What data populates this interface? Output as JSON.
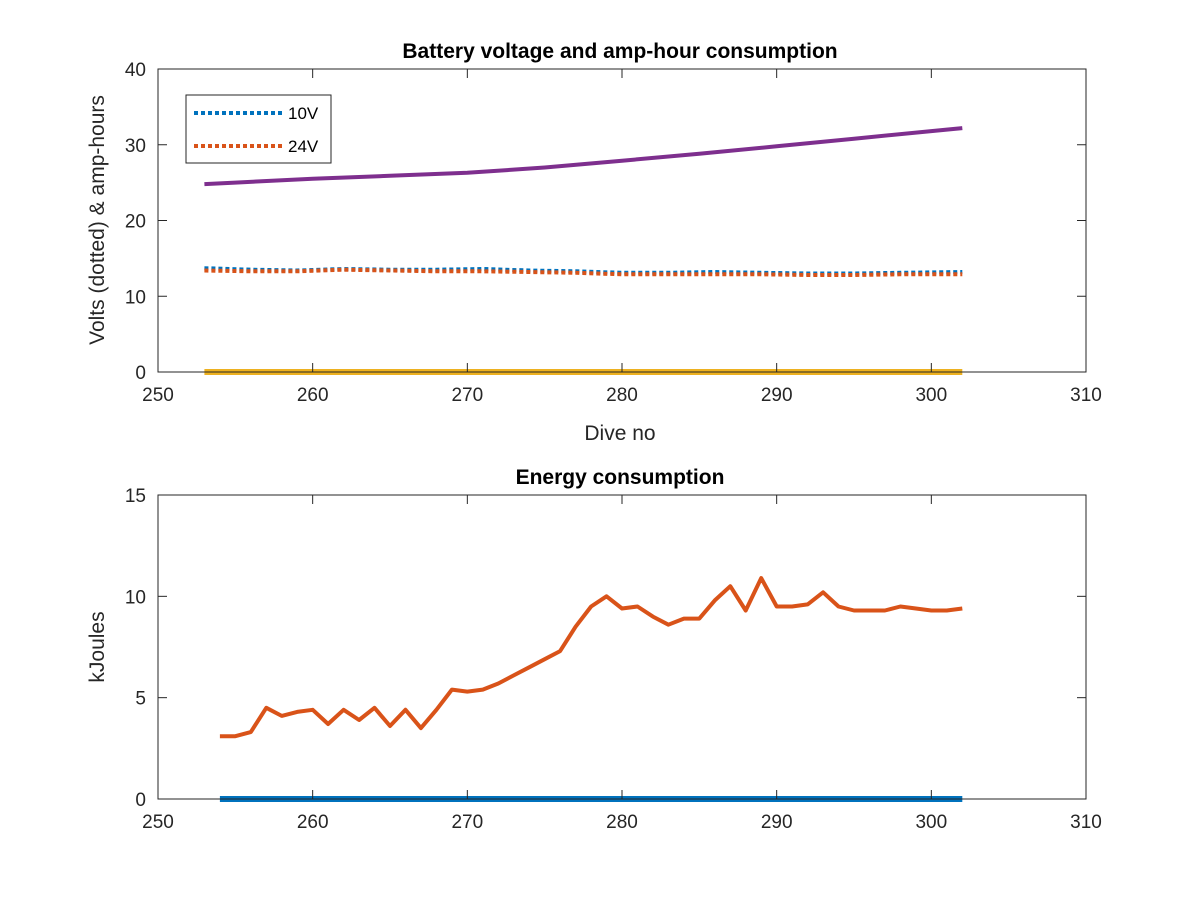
{
  "chart_data": [
    {
      "type": "line",
      "title": "Battery voltage and amp-hour consumption",
      "xlabel": "Dive no",
      "ylabel": "Volts (dotted) & amp-hours",
      "xlim": [
        250,
        310
      ],
      "ylim": [
        0,
        40
      ],
      "xticks": [
        250,
        260,
        270,
        280,
        290,
        300,
        310
      ],
      "yticks": [
        0,
        10,
        20,
        30,
        40
      ],
      "grid": false,
      "legend": "top-left",
      "series": [
        {
          "name": "10V",
          "style": "dotted",
          "color": "#0072BD",
          "x": [
            253,
            256,
            259,
            262,
            265,
            268,
            271,
            274,
            277,
            280,
            283,
            286,
            289,
            292,
            295,
            298,
            302
          ],
          "values": [
            13.7,
            13.5,
            13.4,
            13.6,
            13.5,
            13.5,
            13.6,
            13.4,
            13.3,
            13.1,
            13.1,
            13.2,
            13.1,
            13.0,
            13.0,
            13.1,
            13.2
          ]
        },
        {
          "name": "24V",
          "style": "dotted",
          "color": "#D95319",
          "x": [
            253,
            256,
            259,
            262,
            265,
            268,
            271,
            274,
            277,
            280,
            283,
            286,
            289,
            292,
            295,
            298,
            302
          ],
          "values": [
            13.4,
            13.3,
            13.3,
            13.5,
            13.4,
            13.3,
            13.3,
            13.2,
            13.1,
            12.9,
            12.9,
            12.9,
            12.9,
            12.8,
            12.8,
            12.9,
            12.9
          ]
        },
        {
          "style": "solid",
          "color": "#7E2F8E",
          "x": [
            253,
            255,
            260,
            265,
            270,
            275,
            280,
            285,
            290,
            295,
            300,
            302
          ],
          "values": [
            24.8,
            25.0,
            25.5,
            25.9,
            26.3,
            27.0,
            27.9,
            28.8,
            29.8,
            30.8,
            31.8,
            32.2
          ]
        },
        {
          "style": "solid",
          "color": "#EDB120",
          "x": [
            253,
            302
          ],
          "values": [
            0,
            0
          ]
        }
      ]
    },
    {
      "type": "line",
      "title": "Energy consumption",
      "xlabel": "",
      "ylabel": "kJoules",
      "xlim": [
        250,
        310
      ],
      "ylim": [
        0,
        15
      ],
      "xticks": [
        250,
        260,
        270,
        280,
        290,
        300,
        310
      ],
      "yticks": [
        0,
        5,
        10,
        15
      ],
      "grid": false,
      "series": [
        {
          "style": "solid",
          "color": "#D95319",
          "x": [
            254,
            255,
            256,
            257,
            258,
            259,
            260,
            261,
            262,
            263,
            264,
            265,
            266,
            267,
            268,
            269,
            270,
            271,
            272,
            273,
            274,
            275,
            276,
            277,
            278,
            279,
            280,
            281,
            282,
            283,
            284,
            285,
            286,
            287,
            288,
            289,
            290,
            291,
            292,
            293,
            294,
            295,
            296,
            297,
            298,
            299,
            300,
            301,
            302
          ],
          "values": [
            3.1,
            3.1,
            3.3,
            4.5,
            4.1,
            4.3,
            4.4,
            3.7,
            4.4,
            3.9,
            4.5,
            3.6,
            4.4,
            3.5,
            4.4,
            5.4,
            5.3,
            5.4,
            5.7,
            6.1,
            6.5,
            6.9,
            7.3,
            8.5,
            9.5,
            10.0,
            9.4,
            9.5,
            9.0,
            8.6,
            8.9,
            8.9,
            9.8,
            10.5,
            9.3,
            10.9,
            9.5,
            9.5,
            9.6,
            10.2,
            9.5,
            9.3,
            9.3,
            9.3,
            9.5,
            9.4,
            9.3,
            9.3,
            9.4
          ]
        },
        {
          "style": "solid",
          "color": "#0072BD",
          "x": [
            254,
            302
          ],
          "values": [
            0,
            0
          ]
        }
      ]
    }
  ]
}
